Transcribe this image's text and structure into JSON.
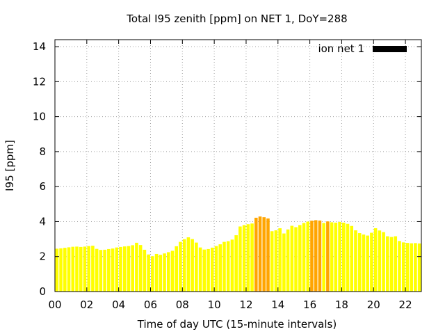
{
  "chart_data": {
    "type": "bar",
    "title": "Total I95 zenith [ppm] on NET 1, DoY=288",
    "xlabel": "Time of day UTC (15-minute intervals)",
    "ylabel": "I95 [ppm]",
    "x_unit": "hours UTC",
    "xlim": [
      0,
      23
    ],
    "ylim": [
      0,
      14.4
    ],
    "x_ticks": [
      0,
      2,
      4,
      6,
      8,
      10,
      12,
      14,
      16,
      18,
      20,
      22
    ],
    "x_tick_labels": [
      "00",
      "02",
      "04",
      "06",
      "08",
      "10",
      "12",
      "14",
      "16",
      "18",
      "20",
      "22"
    ],
    "y_ticks": [
      0,
      2,
      4,
      6,
      8,
      10,
      12,
      14
    ],
    "y_tick_labels": [
      "0",
      "2",
      "4",
      "6",
      "8",
      "10",
      "12",
      "14"
    ],
    "grid": true,
    "legend": {
      "position": "top-right",
      "entries": [
        {
          "label": "ion net 1",
          "color": "#000000"
        }
      ]
    },
    "colors": {
      "normal": "#ffff00",
      "elevated": "#ffa500"
    },
    "interval_hours": 0.25,
    "series": [
      {
        "values": [
          2.45,
          2.47,
          2.5,
          2.53,
          2.56,
          2.57,
          2.55,
          2.57,
          2.6,
          2.62,
          2.44,
          2.38,
          2.39,
          2.43,
          2.46,
          2.52,
          2.55,
          2.58,
          2.6,
          2.65,
          2.79,
          2.66,
          2.39,
          2.12,
          2.02,
          2.15,
          2.1,
          2.18,
          2.25,
          2.33,
          2.59,
          2.84,
          2.99,
          3.1,
          3.0,
          2.8,
          2.52,
          2.4,
          2.43,
          2.51,
          2.6,
          2.7,
          2.84,
          2.88,
          2.97,
          3.22,
          3.72,
          3.8,
          3.85,
          3.89,
          4.22,
          4.29,
          4.25,
          4.18,
          3.45,
          3.5,
          3.62,
          3.32,
          3.55,
          3.76,
          3.68,
          3.8,
          3.92,
          4.0,
          4.05,
          4.08,
          4.06,
          3.92,
          4.01,
          3.96,
          3.94,
          3.98,
          3.94,
          3.87,
          3.75,
          3.5,
          3.34,
          3.26,
          3.2,
          3.36,
          3.62,
          3.49,
          3.4,
          3.16,
          3.12,
          3.16,
          2.89,
          2.81,
          2.78,
          2.76,
          2.77,
          2.75
        ],
        "elevated": [
          0,
          0,
          0,
          0,
          0,
          0,
          0,
          0,
          0,
          0,
          0,
          0,
          0,
          0,
          0,
          0,
          0,
          0,
          0,
          0,
          0,
          0,
          0,
          0,
          0,
          0,
          0,
          0,
          0,
          0,
          0,
          0,
          0,
          0,
          0,
          0,
          0,
          0,
          0,
          0,
          0,
          0,
          0,
          0,
          0,
          0,
          0,
          0,
          0,
          0,
          1,
          1,
          1,
          1,
          0,
          0,
          0,
          0,
          0,
          0,
          0,
          0,
          0,
          0,
          1,
          1,
          1,
          0,
          1,
          0,
          0,
          0,
          0,
          0,
          0,
          0,
          0,
          0,
          0,
          0,
          0,
          0,
          0,
          0,
          0,
          0,
          0,
          0,
          0,
          0,
          0,
          0
        ]
      }
    ]
  }
}
